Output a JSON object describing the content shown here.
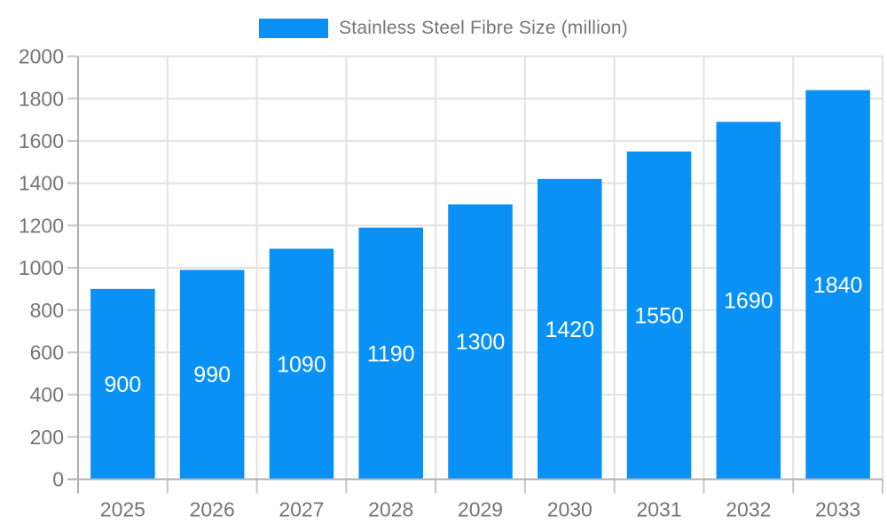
{
  "legend": {
    "label": "Stainless Steel Fibre Size (million)"
  },
  "chart_data": {
    "type": "bar",
    "title": "Stainless Steel Fibre Size (million)",
    "categories": [
      "2025",
      "2026",
      "2027",
      "2028",
      "2029",
      "2030",
      "2031",
      "2032",
      "2033"
    ],
    "values": [
      900,
      990,
      1090,
      1190,
      1300,
      1420,
      1550,
      1690,
      1840
    ],
    "bar_value_labels": [
      "900",
      "990",
      "1090",
      "1190",
      "1300",
      "1420",
      "1550",
      "1690",
      "1840"
    ],
    "xlabel": "",
    "ylabel": "",
    "ylim": [
      0,
      2000
    ],
    "ytick_step": 200,
    "ytick_labels": [
      "0",
      "200",
      "400",
      "600",
      "800",
      "1000",
      "1200",
      "1400",
      "1600",
      "1800",
      "2000"
    ],
    "grid": true,
    "legend_position": "top-center",
    "colors": {
      "bar": "#0a91f6",
      "bar_label": "#ffffff",
      "axis_text": "#757575",
      "grid_line": "#e2e2e2",
      "axis_line": "#b0b0b0",
      "tick_mark": "#c6c6c6",
      "background": "#ffffff"
    }
  }
}
